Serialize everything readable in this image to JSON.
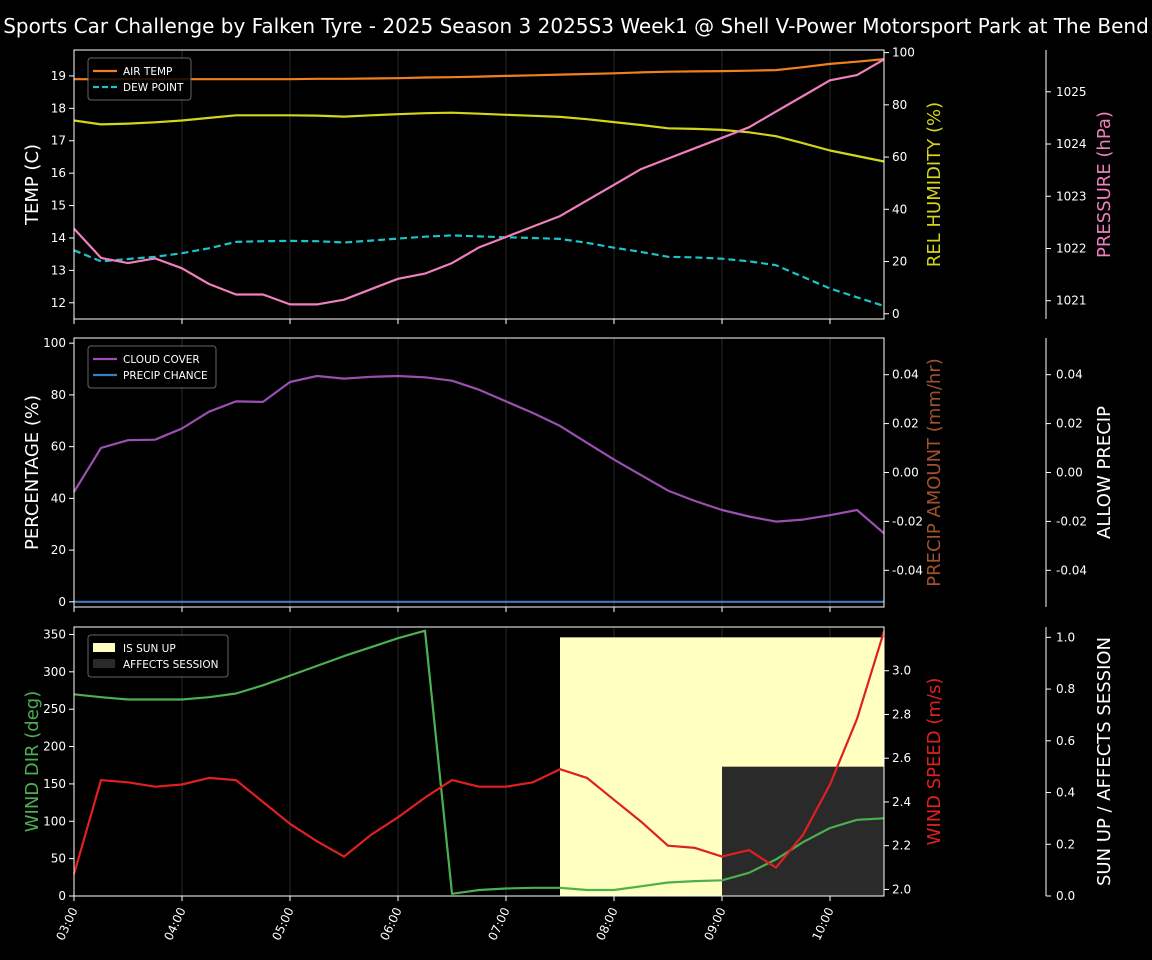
{
  "title": "Sports Car Challenge by Falken Tyre - 2025 Season 3 2025S3 Week1 @ Shell V-Power Motorsport Park at The Bend",
  "colors": {
    "background": "#000000",
    "air_temp": "#f07f1e",
    "dew_point": "#1cc3c9",
    "humidity": "#d4d41a",
    "pressure": "#f07fbf",
    "cloud": "#9b4fb0",
    "precip_chance": "#3d7dbf",
    "precip_amount": "#a0522d",
    "wind_dir": "#4caf50",
    "wind_speed": "#e02020",
    "sun_up": "#ffffc0",
    "affects": "#2a2a2a"
  },
  "chart_data": [
    {
      "type": "line",
      "x": [
        "03:00",
        "03:15",
        "03:30",
        "03:45",
        "04:00",
        "04:15",
        "04:30",
        "04:45",
        "05:00",
        "05:15",
        "05:30",
        "05:45",
        "06:00",
        "06:15",
        "06:30",
        "06:45",
        "07:00",
        "07:15",
        "07:30",
        "07:45",
        "08:00",
        "08:15",
        "08:30",
        "08:45",
        "09:00",
        "09:15",
        "09:30",
        "09:45",
        "10:00",
        "10:15",
        "10:30"
      ],
      "x_ticks": [
        "03:00",
        "04:00",
        "05:00",
        "06:00",
        "07:00",
        "08:00",
        "09:00",
        "10:00"
      ],
      "ylabel": "TEMP (C)",
      "ylim": [
        11.5,
        19.8
      ],
      "yticks": [
        12,
        13,
        14,
        15,
        16,
        17,
        18,
        19
      ],
      "y2label": "REL HUMIDITY (%)",
      "y2lim": [
        -2,
        101
      ],
      "y2ticks": [
        0,
        20,
        40,
        60,
        80,
        100
      ],
      "y3label": "PRESSURE (hPa)",
      "y3lim": [
        1020.65,
        1025.8
      ],
      "y3ticks": [
        1021,
        1022,
        1023,
        1024,
        1025
      ],
      "legend": "top-left",
      "series": [
        {
          "name": "AIR TEMP",
          "axis": "left",
          "style": "solid",
          "color_key": "air_temp",
          "values": [
            18.9,
            18.9,
            18.9,
            18.9,
            18.9,
            18.9,
            18.9,
            18.9,
            18.9,
            18.91,
            18.91,
            18.92,
            18.93,
            18.95,
            18.96,
            18.98,
            19.0,
            19.02,
            19.04,
            19.06,
            19.08,
            19.11,
            19.13,
            19.14,
            19.15,
            19.16,
            19.18,
            19.27,
            19.37,
            19.44,
            19.52
          ]
        },
        {
          "name": "DEW POINT",
          "axis": "left",
          "style": "dashed",
          "color_key": "dew_point",
          "values": [
            13.62,
            13.28,
            13.35,
            13.42,
            13.53,
            13.68,
            13.88,
            13.9,
            13.91,
            13.9,
            13.86,
            13.92,
            13.98,
            14.04,
            14.08,
            14.05,
            14.02,
            14.0,
            13.97,
            13.85,
            13.7,
            13.57,
            13.42,
            13.4,
            13.36,
            13.28,
            13.16,
            12.8,
            12.44,
            12.17,
            11.9
          ]
        },
        {
          "name": "REL HUMIDITY",
          "axis": "right",
          "style": "solid",
          "color_key": "humidity",
          "values": [
            74,
            72.5,
            72.8,
            73.3,
            74,
            75,
            76,
            76,
            76,
            75.9,
            75.5,
            76,
            76.4,
            76.8,
            77,
            76.6,
            76.2,
            75.8,
            75.4,
            74.5,
            73.4,
            72.3,
            71,
            70.8,
            70.4,
            69.5,
            68,
            65.3,
            62.5,
            60.4,
            58.3
          ]
        },
        {
          "name": "PRESSURE",
          "axis": "right2",
          "style": "solid",
          "color_key": "pressure",
          "values": [
            1022.38,
            1021.82,
            1021.72,
            1021.81,
            1021.62,
            1021.32,
            1021.12,
            1021.12,
            1020.93,
            1020.93,
            1021.02,
            1021.22,
            1021.42,
            1021.52,
            1021.72,
            1022.02,
            1022.22,
            1022.42,
            1022.62,
            1022.92,
            1023.22,
            1023.52,
            1023.72,
            1023.92,
            1024.12,
            1024.32,
            1024.62,
            1024.92,
            1025.22,
            1025.32,
            1025.62
          ]
        }
      ]
    },
    {
      "type": "line",
      "x": [
        "03:00",
        "03:15",
        "03:30",
        "03:45",
        "04:00",
        "04:15",
        "04:30",
        "04:45",
        "05:00",
        "05:15",
        "05:30",
        "05:45",
        "06:00",
        "06:15",
        "06:30",
        "06:45",
        "07:00",
        "07:15",
        "07:30",
        "07:45",
        "08:00",
        "08:15",
        "08:30",
        "08:45",
        "09:00",
        "09:15",
        "09:30",
        "09:45",
        "10:00",
        "10:15",
        "10:30"
      ],
      "ylabel": "PERCENTAGE (%)",
      "ylim": [
        -2,
        102
      ],
      "yticks": [
        0,
        20,
        40,
        60,
        80,
        100
      ],
      "y2label": "PRECIP AMOUNT (mm/hr)",
      "y2lim": [
        -0.055,
        0.055
      ],
      "y2ticks": [
        -0.04,
        -0.02,
        0.0,
        0.02,
        0.04
      ],
      "y3label": "ALLOW PRECIP",
      "y3lim": [
        -0.055,
        0.055
      ],
      "y3ticks": [
        -0.04,
        -0.02,
        0.0,
        0.02,
        0.04
      ],
      "legend": "top-left",
      "series": [
        {
          "name": "CLOUD COVER",
          "axis": "left",
          "style": "solid",
          "color_key": "cloud",
          "values": [
            42.5,
            59.5,
            62.5,
            62.7,
            67,
            73.5,
            77.5,
            77.3,
            85,
            87.3,
            86.3,
            87,
            87.3,
            86.8,
            85.5,
            82,
            77.5,
            73,
            68,
            61.5,
            55,
            49,
            43,
            39,
            35.5,
            33,
            31,
            31.8,
            33.5,
            35.5,
            26.5
          ]
        },
        {
          "name": "PRECIP CHANCE",
          "axis": "left",
          "style": "solid",
          "color_key": "precip_chance",
          "values": [
            0,
            0,
            0,
            0,
            0,
            0,
            0,
            0,
            0,
            0,
            0,
            0,
            0,
            0,
            0,
            0,
            0,
            0,
            0,
            0,
            0,
            0,
            0,
            0,
            0,
            0,
            0,
            0,
            0,
            0,
            0
          ]
        }
      ]
    },
    {
      "type": "line",
      "x": [
        "03:00",
        "03:15",
        "03:30",
        "03:45",
        "04:00",
        "04:15",
        "04:30",
        "04:45",
        "05:00",
        "05:15",
        "05:30",
        "05:45",
        "06:00",
        "06:15",
        "06:30",
        "06:45",
        "07:00",
        "07:15",
        "07:30",
        "07:45",
        "08:00",
        "08:15",
        "08:30",
        "08:45",
        "09:00",
        "09:15",
        "09:30",
        "09:45",
        "10:00",
        "10:15",
        "10:30"
      ],
      "ylabel": "WIND DIR (deg)",
      "ylim": [
        0,
        360
      ],
      "yticks": [
        0,
        50,
        100,
        150,
        200,
        250,
        300,
        350
      ],
      "y2label": "WIND SPEED (m/s)",
      "y2lim": [
        1.97,
        3.2
      ],
      "y2ticks": [
        2.0,
        2.2,
        2.4,
        2.6,
        2.8,
        3.0
      ],
      "y3label": "SUN UP / AFFECTS SESSION",
      "y3lim": [
        0,
        1.04
      ],
      "y3ticks": [
        0.0,
        0.2,
        0.4,
        0.6,
        0.8,
        1.0
      ],
      "legend": "top-left",
      "series": [
        {
          "name": "WIND DIR",
          "axis": "left",
          "style": "solid",
          "color_key": "wind_dir",
          "values": [
            270,
            266,
            263,
            263,
            263,
            266,
            271,
            282,
            295,
            308,
            321,
            333,
            345,
            355,
            3,
            8,
            10,
            11,
            11,
            8,
            8,
            13,
            18,
            20,
            21,
            31,
            49,
            72,
            91,
            102,
            104
          ]
        },
        {
          "name": "WIND SPEED",
          "axis": "right",
          "style": "solid",
          "color_key": "wind_speed",
          "values": [
            2.07,
            2.5,
            2.49,
            2.47,
            2.48,
            2.51,
            2.5,
            2.4,
            2.3,
            2.22,
            2.15,
            2.25,
            2.33,
            2.42,
            2.5,
            2.47,
            2.47,
            2.49,
            2.55,
            2.51,
            2.41,
            2.31,
            2.2,
            2.19,
            2.15,
            2.18,
            2.1,
            2.25,
            2.48,
            2.78,
            3.18
          ]
        }
      ],
      "bands": [
        {
          "name": "IS SUN UP",
          "color_key": "sun_up",
          "from": "07:30",
          "to": "10:30",
          "value": 1.0
        },
        {
          "name": "AFFECTS SESSION",
          "color_key": "affects",
          "from": "09:00",
          "to": "10:30",
          "value": 0.5
        }
      ]
    }
  ]
}
